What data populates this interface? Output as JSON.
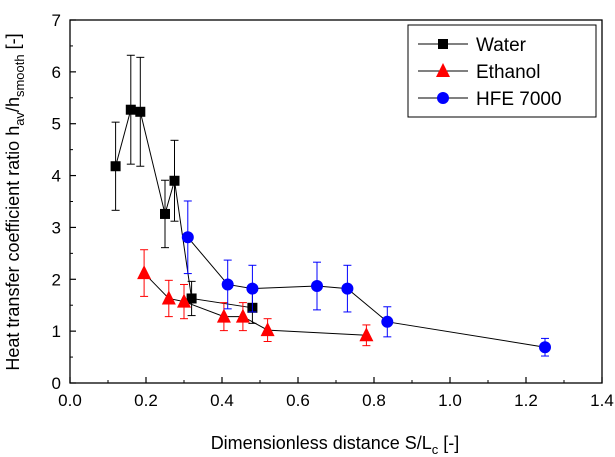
{
  "chart_data": {
    "type": "scatter",
    "title": "",
    "xlabel": "Dimensionless distance S/L",
    "xlabel_sub": "c",
    "xlabel_unit": " [-]",
    "ylabel_main": "Heat transfer coefficient ratio h",
    "ylabel_sub1": "av",
    "ylabel_slash": "/h",
    "ylabel_sub2": "smooth",
    "ylabel_unit": " [-]",
    "xlim": [
      0.0,
      1.4
    ],
    "ylim": [
      0,
      7
    ],
    "x_ticks": [
      "0.0",
      "0.2",
      "0.4",
      "0.6",
      "0.8",
      "1.0",
      "1.2",
      "1.4"
    ],
    "y_ticks": [
      "0",
      "1",
      "2",
      "3",
      "4",
      "5",
      "6",
      "7"
    ],
    "grid": false,
    "legend_position": "top-right",
    "series": [
      {
        "name": "Water",
        "marker": "square",
        "color": "#000000",
        "points": [
          {
            "x": 0.12,
            "y": 4.18,
            "err": 0.85
          },
          {
            "x": 0.16,
            "y": 5.27,
            "err": 1.05
          },
          {
            "x": 0.185,
            "y": 5.23,
            "err": 1.05
          },
          {
            "x": 0.25,
            "y": 3.26,
            "err": 0.65
          },
          {
            "x": 0.275,
            "y": 3.9,
            "err": 0.78
          },
          {
            "x": 0.32,
            "y": 1.63,
            "err": 0.33
          },
          {
            "x": 0.48,
            "y": 1.45,
            "err": 0.3
          }
        ]
      },
      {
        "name": "Ethanol",
        "marker": "triangle",
        "color": "#ff0000",
        "points": [
          {
            "x": 0.195,
            "y": 2.12,
            "err": 0.45
          },
          {
            "x": 0.26,
            "y": 1.63,
            "err": 0.35
          },
          {
            "x": 0.3,
            "y": 1.57,
            "err": 0.33
          },
          {
            "x": 0.405,
            "y": 1.28,
            "err": 0.27
          },
          {
            "x": 0.455,
            "y": 1.28,
            "err": 0.27
          },
          {
            "x": 0.52,
            "y": 1.02,
            "err": 0.22
          },
          {
            "x": 0.78,
            "y": 0.92,
            "err": 0.2
          }
        ]
      },
      {
        "name": "HFE 7000",
        "marker": "circle",
        "color": "#0000ff",
        "points": [
          {
            "x": 0.31,
            "y": 2.81,
            "err": 0.7
          },
          {
            "x": 0.415,
            "y": 1.9,
            "err": 0.47
          },
          {
            "x": 0.48,
            "y": 1.82,
            "err": 0.45
          },
          {
            "x": 0.65,
            "y": 1.87,
            "err": 0.46
          },
          {
            "x": 0.73,
            "y": 1.82,
            "err": 0.45
          },
          {
            "x": 0.835,
            "y": 1.18,
            "err": 0.29
          },
          {
            "x": 1.25,
            "y": 0.69,
            "err": 0.17
          }
        ]
      }
    ]
  }
}
